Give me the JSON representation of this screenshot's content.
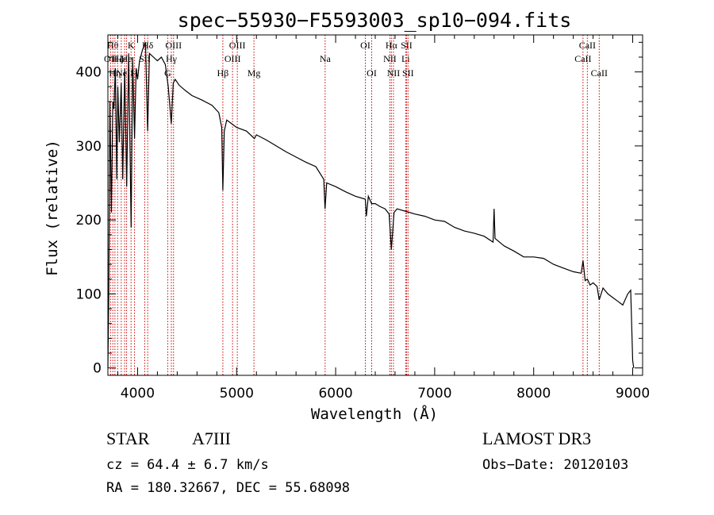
{
  "chart_data": {
    "type": "line",
    "title": "spec−55930−F5593003_sp10−094.fits",
    "xlabel": "Wavelength (Å)",
    "ylabel": "Flux (relative)",
    "xlim": [
      3700,
      9100
    ],
    "ylim": [
      -10,
      450
    ],
    "xticks": [
      4000,
      5000,
      6000,
      7000,
      8000,
      9000
    ],
    "yticks": [
      0,
      100,
      200,
      300,
      400
    ],
    "grid": false,
    "series": [
      {
        "name": "spectrum",
        "x": [
          3700,
          3710,
          3720,
          3735,
          3750,
          3760,
          3775,
          3790,
          3800,
          3815,
          3835,
          3850,
          3870,
          3890,
          3910,
          3935,
          3950,
          3969,
          3985,
          4000,
          4020,
          4050,
          4080,
          4101,
          4120,
          4160,
          4200,
          4240,
          4280,
          4310,
          4340,
          4360,
          4380,
          4420,
          4480,
          4550,
          4650,
          4750,
          4820,
          4850,
          4861,
          4875,
          4900,
          4950,
          5000,
          5100,
          5180,
          5200,
          5300,
          5400,
          5500,
          5600,
          5700,
          5800,
          5880,
          5893,
          5910,
          6000,
          6100,
          6200,
          6300,
          6310,
          6330,
          6363,
          6400,
          6450,
          6500,
          6540,
          6563,
          6590,
          6620,
          6700,
          6800,
          6900,
          7000,
          7100,
          7200,
          7300,
          7400,
          7500,
          7590,
          7600,
          7610,
          7700,
          7800,
          7900,
          8000,
          8100,
          8200,
          8300,
          8400,
          8480,
          8498,
          8520,
          8542,
          8570,
          8600,
          8640,
          8662,
          8700,
          8750,
          8800,
          8850,
          8900,
          8950,
          8980,
          9000,
          9010
        ],
        "values": [
          0,
          110,
          360,
          210,
          360,
          350,
          405,
          255,
          380,
          305,
          385,
          255,
          405,
          245,
          425,
          190,
          420,
          310,
          405,
          390,
          415,
          430,
          440,
          320,
          425,
          420,
          415,
          420,
          410,
          380,
          330,
          385,
          390,
          382,
          375,
          368,
          362,
          355,
          345,
          325,
          240,
          320,
          335,
          330,
          325,
          320,
          310,
          315,
          308,
          300,
          292,
          285,
          278,
          272,
          255,
          215,
          250,
          245,
          238,
          232,
          228,
          205,
          232,
          222,
          222,
          218,
          215,
          208,
          160,
          210,
          215,
          212,
          208,
          205,
          200,
          198,
          190,
          185,
          182,
          178,
          170,
          215,
          175,
          165,
          158,
          150,
          150,
          148,
          140,
          135,
          130,
          128,
          145,
          118,
          120,
          112,
          115,
          110,
          92,
          108,
          100,
          95,
          90,
          85,
          100,
          105,
          10,
          0
        ]
      }
    ],
    "line_markers": [
      {
        "wave": 3727,
        "label": "OII",
        "row": 2
      },
      {
        "wave": 3750,
        "label": "Hθ",
        "row": 1
      },
      {
        "wave": 3771,
        "label": "Hη",
        "row": 3
      },
      {
        "wave": 3798,
        "label": "Hζ",
        "row": 2
      },
      {
        "wave": 3835,
        "label": "Hε",
        "row": 2
      },
      {
        "wave": 3869,
        "label": "NeII",
        "row": 3
      },
      {
        "wave": 3889,
        "label": "He",
        "row": 2
      },
      {
        "wave": 3934,
        "label": "K",
        "row": 1
      },
      {
        "wave": 3969,
        "label": "H",
        "row": 3
      },
      {
        "wave": 4072,
        "label": "SII",
        "row": 2
      },
      {
        "wave": 4102,
        "label": "Hδ",
        "row": 1
      },
      {
        "wave": 4304,
        "label": "G",
        "row": 3
      },
      {
        "wave": 4341,
        "label": "Hγ",
        "row": 2
      },
      {
        "wave": 4363,
        "label": "OIII",
        "row": 1
      },
      {
        "wave": 4861,
        "label": "Hβ",
        "row": 3
      },
      {
        "wave": 4959,
        "label": "OIII",
        "row": 2
      },
      {
        "wave": 5007,
        "label": "OIII",
        "row": 1
      },
      {
        "wave": 5175,
        "label": "Mg",
        "row": 3
      },
      {
        "wave": 5894,
        "label": "Na",
        "row": 2
      },
      {
        "wave": 6300,
        "label": "OI",
        "row": 1
      },
      {
        "wave": 6364,
        "label": "OI",
        "row": 3
      },
      {
        "wave": 6548,
        "label": "NII",
        "row": 2
      },
      {
        "wave": 6563,
        "label": "Hα",
        "row": 1
      },
      {
        "wave": 6584,
        "label": "NII",
        "row": 3
      },
      {
        "wave": 6707,
        "label": "Li",
        "row": 2
      },
      {
        "wave": 6716,
        "label": "SII",
        "row": 1
      },
      {
        "wave": 6731,
        "label": "SII",
        "row": 3
      },
      {
        "wave": 8498,
        "label": "CaII",
        "row": 2
      },
      {
        "wave": 8542,
        "label": "CaII",
        "row": 1
      },
      {
        "wave": 8662,
        "label": "CaII",
        "row": 3
      }
    ]
  },
  "info": {
    "object_class": "STAR",
    "subclass": "A7III",
    "redshift": "cz = 64.4 ± 6.7 km/s",
    "coords": "RA = 180.32667, DEC =  55.68098",
    "survey": "LAMOST DR3",
    "obs_date": "Obs−Date: 20120103"
  },
  "colors": {
    "spectrum": "#000000",
    "marker": "#cc0000",
    "axes": "#000000"
  }
}
